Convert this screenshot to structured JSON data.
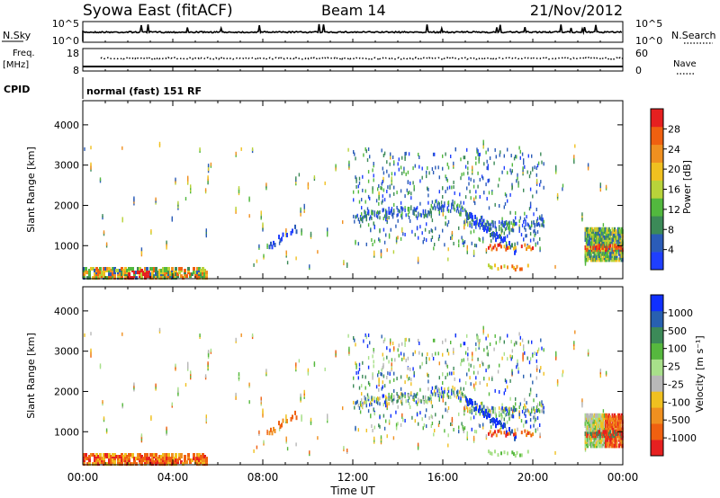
{
  "header": {
    "title": "Syowa East (fitACF)",
    "beam": "Beam 14",
    "date": "21/Nov/2012"
  },
  "noise_panel": {
    "left_label": "N.Sky",
    "right_label": "N.Search",
    "left_ticks": [
      "10^5",
      "10^0"
    ],
    "right_ticks": [
      "10^5",
      "10^0"
    ]
  },
  "freq_panel": {
    "left_label_line1": "Freq.",
    "left_label_line2": "[MHz]",
    "right_label": "Nave",
    "left_ticks": [
      "18",
      "8"
    ],
    "right_ticks": [
      "60",
      "0"
    ]
  },
  "cpid": {
    "label": "CPID",
    "value": "normal (fast) 151 RF"
  },
  "colors": {
    "power": [
      "#1f3fff",
      "#2b5cb8",
      "#3c8a58",
      "#52b83e",
      "#b8d33a",
      "#f0c020",
      "#f09020",
      "#f06010",
      "#e62020"
    ],
    "velocity": [
      "#1030ff",
      "#2860b0",
      "#3c8a58",
      "#56b83e",
      "#a8e08a",
      "#b8b8b8",
      "#f0c020",
      "#f09020",
      "#f06010",
      "#e62020"
    ]
  },
  "chart_data": [
    {
      "type": "heatmap",
      "name": "power",
      "ylabel": "Slant Range [km]",
      "yticks": [
        1000,
        2000,
        3000,
        4000
      ],
      "ylim": [
        180,
        4600
      ],
      "xlim": [
        0,
        24
      ],
      "colorbar": {
        "label": "Power [dB]",
        "ticks": [
          4,
          8,
          12,
          16,
          20,
          24,
          28
        ],
        "range": [
          0,
          32
        ]
      }
    },
    {
      "type": "heatmap",
      "name": "velocity",
      "ylabel": "Slant Range [km]",
      "yticks": [
        1000,
        2000,
        3000,
        4000
      ],
      "ylim": [
        180,
        4600
      ],
      "xlim": [
        0,
        24
      ],
      "colorbar": {
        "label": "Velocity [m s⁻¹]",
        "ticks": [
          "1000",
          "500",
          "100",
          "25",
          "-25",
          "-100",
          "-500",
          "-1000"
        ]
      }
    }
  ],
  "time_axis": {
    "label": "Time UT",
    "ticks": [
      "00:00",
      "04:00",
      "08:00",
      "12:00",
      "16:00",
      "20:00",
      "00:00"
    ]
  }
}
